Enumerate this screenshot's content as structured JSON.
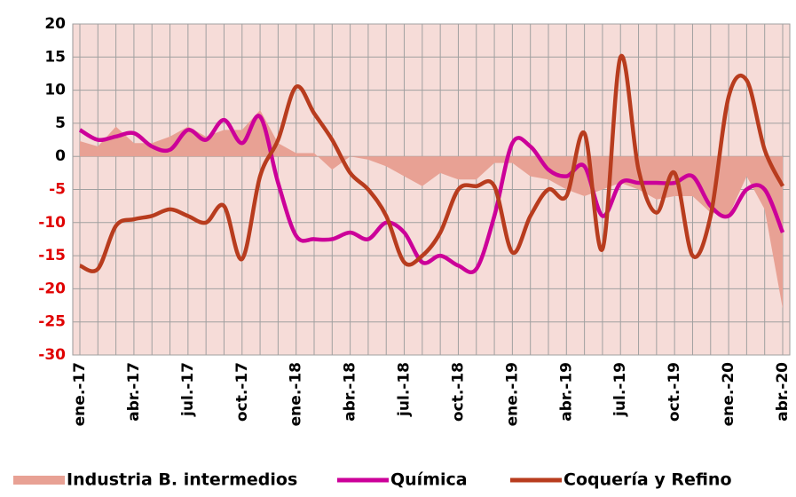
{
  "chart_data": {
    "type": "line",
    "categories": [
      "ene.-17",
      null,
      null,
      "abr.-17",
      null,
      null,
      "jul.-17",
      null,
      null,
      "oct.-17",
      null,
      null,
      "ene.-18",
      null,
      null,
      "abr.-18",
      null,
      null,
      "jul.-18",
      null,
      null,
      "oct.-18",
      null,
      null,
      "ene.-19",
      null,
      null,
      "abr.-19",
      null,
      null,
      "jul.-19",
      null,
      null,
      "oct.-19",
      null,
      null,
      "ene.-20",
      null,
      null,
      "abr.-20"
    ],
    "series": [
      {
        "name": "Industria B. intermedios",
        "kind": "area",
        "color": "#e8a194",
        "values": [
          2.3,
          1.5,
          4.5,
          2,
          2,
          3,
          4.5,
          3,
          4,
          4,
          7,
          2,
          0.5,
          0.5,
          -2,
          0,
          -0.5,
          -1.5,
          -3,
          -4.5,
          -2.5,
          -3.5,
          -3.5,
          -1,
          -1,
          -3,
          -3.5,
          -5,
          -6,
          -5,
          -4,
          -5,
          -6.5,
          -6,
          -6,
          -8.5,
          -9,
          -3,
          -8,
          -23
        ]
      },
      {
        "name": "Química",
        "kind": "line",
        "color": "#cc0099",
        "values": [
          4,
          2.5,
          3,
          3.5,
          1.5,
          1,
          4,
          2.5,
          5.5,
          2,
          6,
          -4,
          -12,
          -12.5,
          -12.5,
          -11.5,
          -12.5,
          -10,
          -11.5,
          -16,
          -15,
          -16.5,
          -17,
          -9,
          2,
          1.5,
          -2,
          -3,
          -1.5,
          -9,
          -4,
          -4,
          -4,
          -4,
          -3,
          -7.5,
          -9,
          -5,
          -5,
          -11.5
        ]
      },
      {
        "name": "Coquería y Refino",
        "kind": "line",
        "color": "#b83c1e",
        "values": [
          -16.5,
          -17,
          -10.5,
          -9.5,
          -9,
          -8,
          -9,
          -10,
          -7.5,
          -15.5,
          -3,
          2.5,
          10.5,
          6.5,
          2.5,
          -2.5,
          -5,
          -9,
          -16,
          -15,
          -11.5,
          -5,
          -4.5,
          -4.5,
          -14.5,
          -9,
          -5,
          -6,
          3.5,
          -14,
          15,
          -2,
          -8.5,
          -2.5,
          -15,
          -9,
          9,
          11.5,
          1,
          -4.5
        ]
      }
    ],
    "ylim": [
      -30,
      20
    ],
    "yticks": [
      -30,
      -25,
      -20,
      -15,
      -10,
      -5,
      0,
      5,
      10,
      15,
      20
    ],
    "grid": true,
    "plot_background": "#f6dcd8",
    "negative_tick_color": "#e00000",
    "legend": "bottom"
  }
}
